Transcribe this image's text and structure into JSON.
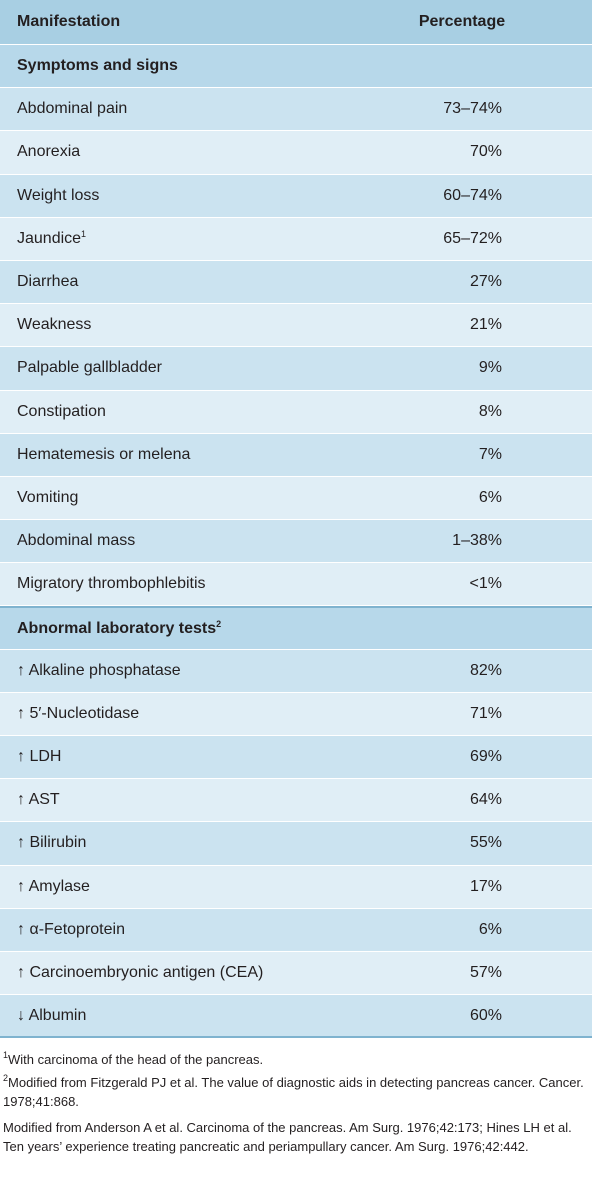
{
  "table": {
    "columns": [
      "Manifestation",
      "Percentage"
    ],
    "sections": [
      {
        "title": "Symptoms and signs",
        "rows": [
          {
            "label": "Abdominal pain",
            "value": "73–74%"
          },
          {
            "label": "Anorexia",
            "value": "70%"
          },
          {
            "label": "Weight loss",
            "value": "60–74%"
          },
          {
            "label": "Jaundice",
            "sup": "1",
            "value": "65–72%"
          },
          {
            "label": "Diarrhea",
            "value": "27%"
          },
          {
            "label": "Weakness",
            "value": "21%"
          },
          {
            "label": "Palpable gallbladder",
            "value": "9%"
          },
          {
            "label": "Constipation",
            "value": "8%"
          },
          {
            "label": "Hematemesis or melena",
            "value": "7%"
          },
          {
            "label": "Vomiting",
            "value": "6%"
          },
          {
            "label": "Abdominal mass",
            "value": "1–38%"
          },
          {
            "label": "Migratory thrombophlebitis",
            "value": "<1%"
          }
        ]
      },
      {
        "title": "Abnormal laboratory tests",
        "sup": "2",
        "rows": [
          {
            "label": "↑ Alkaline phosphatase",
            "value": "82%"
          },
          {
            "label": "↑ 5′-Nucleotidase",
            "value": "71%"
          },
          {
            "label": "↑ LDH",
            "value": "69%"
          },
          {
            "label": "↑ AST",
            "value": "64%"
          },
          {
            "label": "↑ Bilirubin",
            "value": "55%"
          },
          {
            "label": "↑ Amylase",
            "value": "17%"
          },
          {
            "label": "↑ α-Fetoprotein",
            "value": "6%"
          },
          {
            "label": "↑ Carcinoembryonic antigen (CEA)",
            "value": "57%"
          },
          {
            "label": "↓ Albumin",
            "value": "60%"
          }
        ]
      }
    ]
  },
  "footnotes": [
    {
      "marker": "1",
      "text": "With carcinoma of the head of the pancreas."
    },
    {
      "marker": "2",
      "text": "Modified from Fitzgerald PJ et al. The value of diagnostic aids in detecting pancreas cancer. Cancer. 1978;41:868."
    }
  ],
  "source": "Modified from Anderson A et al. Carcinoma of the pancreas. Am Surg. 1976;42:173; Hines LH et al. Ten years’ experience treating pancreatic and periampullary cancer. Am Surg. 1976;42:442."
}
